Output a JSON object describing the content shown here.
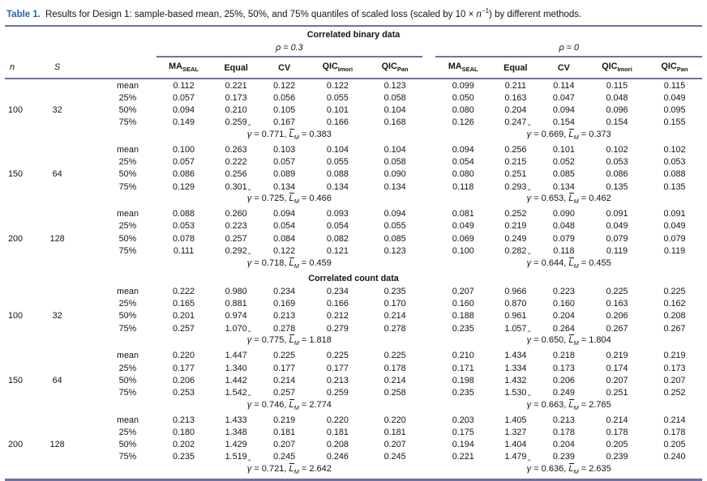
{
  "caption": {
    "label": "Table 1.",
    "text_before_math": "Results for Design 1: sample-based mean, 25%, 50%, and 75% quantiles of scaled loss (scaled by 10 × ",
    "math_var": "n",
    "math_sup": "−1",
    "text_after_math": ") by different methods."
  },
  "table": {
    "columns": {
      "n": "n",
      "S": "S"
    },
    "groups": [
      {
        "label": "ρ = 0.3"
      },
      {
        "label": "ρ = 0"
      }
    ],
    "methods": [
      {
        "name": "MA",
        "sub": "SEAL"
      },
      {
        "name": "Equal",
        "sub": ""
      },
      {
        "name": "CV",
        "sub": ""
      },
      {
        "name": "QIC",
        "sub": "Imori"
      },
      {
        "name": "QIC",
        "sub": "Pan"
      }
    ],
    "stat_format": {
      "gamma": "γ",
      "equals": "=",
      "comma": ",",
      "L": "L",
      "L_sub": "M"
    },
    "sections": [
      {
        "title": "Correlated binary data",
        "blocks": [
          {
            "n": "100",
            "S": "32",
            "rows": [
              {
                "label": "mean",
                "g1": [
                  "0.112",
                  "0.221",
                  "0.122",
                  "0.122",
                  "0.123"
                ],
                "g2": [
                  "0.099",
                  "0.211",
                  "0.114",
                  "0.115",
                  "0.115"
                ]
              },
              {
                "label": "25%",
                "g1": [
                  "0.057",
                  "0.173",
                  "0.056",
                  "0.055",
                  "0.058"
                ],
                "g2": [
                  "0.050",
                  "0.163",
                  "0.047",
                  "0.048",
                  "0.049"
                ]
              },
              {
                "label": "50%",
                "g1": [
                  "0.094",
                  "0.210",
                  "0.105",
                  "0.101",
                  "0.104"
                ],
                "g2": [
                  "0.080",
                  "0.204",
                  "0.094",
                  "0.096",
                  "0.095"
                ]
              },
              {
                "label": "75%",
                "g1": [
                  "0.149",
                  "0.259",
                  "0.167",
                  "0.166",
                  "0.168"
                ],
                "g2": [
                  "0.126",
                  "0.247",
                  "0.154",
                  "0.154",
                  "0.155"
                ]
              }
            ],
            "footers": [
              {
                "gamma": "0.771",
                "lm": "0.383"
              },
              {
                "gamma": "0.669",
                "lm": "0.373"
              }
            ]
          },
          {
            "n": "150",
            "S": "64",
            "rows": [
              {
                "label": "mean",
                "g1": [
                  "0.100",
                  "0.263",
                  "0.103",
                  "0.104",
                  "0.104"
                ],
                "g2": [
                  "0.094",
                  "0.256",
                  "0.101",
                  "0.102",
                  "0.102"
                ]
              },
              {
                "label": "25%",
                "g1": [
                  "0.057",
                  "0.222",
                  "0.057",
                  "0.055",
                  "0.058"
                ],
                "g2": [
                  "0.054",
                  "0.215",
                  "0.052",
                  "0.053",
                  "0.053"
                ]
              },
              {
                "label": "50%",
                "g1": [
                  "0.086",
                  "0.256",
                  "0.089",
                  "0.088",
                  "0.090"
                ],
                "g2": [
                  "0.080",
                  "0.251",
                  "0.085",
                  "0.086",
                  "0.088"
                ]
              },
              {
                "label": "75%",
                "g1": [
                  "0.129",
                  "0.301",
                  "0.134",
                  "0.134",
                  "0.134"
                ],
                "g2": [
                  "0.118",
                  "0.293",
                  "0.134",
                  "0.135",
                  "0.135"
                ]
              }
            ],
            "footers": [
              {
                "gamma": "0.725",
                "lm": "0.466"
              },
              {
                "gamma": "0.653",
                "lm": "0.462"
              }
            ]
          },
          {
            "n": "200",
            "S": "128",
            "rows": [
              {
                "label": "mean",
                "g1": [
                  "0.088",
                  "0.260",
                  "0.094",
                  "0.093",
                  "0.094"
                ],
                "g2": [
                  "0.081",
                  "0.252",
                  "0.090",
                  "0.091",
                  "0.091"
                ]
              },
              {
                "label": "25%",
                "g1": [
                  "0.053",
                  "0.223",
                  "0.054",
                  "0.054",
                  "0.055"
                ],
                "g2": [
                  "0.049",
                  "0.219",
                  "0.048",
                  "0.049",
                  "0.049"
                ]
              },
              {
                "label": "50%",
                "g1": [
                  "0.078",
                  "0.257",
                  "0.084",
                  "0.082",
                  "0.085"
                ],
                "g2": [
                  "0.069",
                  "0.249",
                  "0.079",
                  "0.079",
                  "0.079"
                ]
              },
              {
                "label": "75%",
                "g1": [
                  "0.111",
                  "0.292",
                  "0.122",
                  "0.121",
                  "0.123"
                ],
                "g2": [
                  "0.100",
                  "0.282",
                  "0.118",
                  "0.119",
                  "0.119"
                ]
              }
            ],
            "footers": [
              {
                "gamma": "0.718",
                "lm": "0.459"
              },
              {
                "gamma": "0.644",
                "lm": "0.455"
              }
            ]
          }
        ]
      },
      {
        "title": "Correlated count data",
        "blocks": [
          {
            "n": "100",
            "S": "32",
            "rows": [
              {
                "label": "mean",
                "g1": [
                  "0.222",
                  "0.980",
                  "0.234",
                  "0.234",
                  "0.235"
                ],
                "g2": [
                  "0.207",
                  "0.966",
                  "0.223",
                  "0.225",
                  "0.225"
                ]
              },
              {
                "label": "25%",
                "g1": [
                  "0.165",
                  "0.881",
                  "0.169",
                  "0.166",
                  "0.170"
                ],
                "g2": [
                  "0.160",
                  "0.870",
                  "0.160",
                  "0.163",
                  "0.162"
                ]
              },
              {
                "label": "50%",
                "g1": [
                  "0.201",
                  "0.974",
                  "0.213",
                  "0.212",
                  "0.214"
                ],
                "g2": [
                  "0.188",
                  "0.961",
                  "0.204",
                  "0.206",
                  "0.208"
                ]
              },
              {
                "label": "75%",
                "g1": [
                  "0.257",
                  "1.070",
                  "0.278",
                  "0.279",
                  "0.278"
                ],
                "g2": [
                  "0.235",
                  "1.057",
                  "0.264",
                  "0.267",
                  "0.267"
                ]
              }
            ],
            "footers": [
              {
                "gamma": "0.775",
                "lm": "1.818"
              },
              {
                "gamma": "0.650",
                "lm": "1.804"
              }
            ]
          },
          {
            "n": "150",
            "S": "64",
            "rows": [
              {
                "label": "mean",
                "g1": [
                  "0.220",
                  "1.447",
                  "0.225",
                  "0.225",
                  "0.225"
                ],
                "g2": [
                  "0.210",
                  "1.434",
                  "0.218",
                  "0.219",
                  "0.219"
                ]
              },
              {
                "label": "25%",
                "g1": [
                  "0.177",
                  "1.340",
                  "0.177",
                  "0.177",
                  "0.178"
                ],
                "g2": [
                  "0.171",
                  "1.334",
                  "0.173",
                  "0.174",
                  "0.173"
                ]
              },
              {
                "label": "50%",
                "g1": [
                  "0.206",
                  "1.442",
                  "0.214",
                  "0.213",
                  "0.214"
                ],
                "g2": [
                  "0.198",
                  "1.432",
                  "0.206",
                  "0.207",
                  "0.207"
                ]
              },
              {
                "label": "75%",
                "g1": [
                  "0.253",
                  "1.542",
                  "0.257",
                  "0.259",
                  "0.258"
                ],
                "g2": [
                  "0.235",
                  "1.530",
                  "0.249",
                  "0.251",
                  "0.252"
                ]
              }
            ],
            "footers": [
              {
                "gamma": "0.746",
                "lm": "2.774"
              },
              {
                "gamma": "0.663",
                "lm": "2.765"
              }
            ]
          },
          {
            "n": "200",
            "S": "128",
            "rows": [
              {
                "label": "mean",
                "g1": [
                  "0.213",
                  "1.433",
                  "0.219",
                  "0.220",
                  "0.220"
                ],
                "g2": [
                  "0.203",
                  "1.405",
                  "0.213",
                  "0.214",
                  "0.214"
                ]
              },
              {
                "label": "25%",
                "g1": [
                  "0.180",
                  "1.348",
                  "0.181",
                  "0.181",
                  "0.181"
                ],
                "g2": [
                  "0.175",
                  "1.327",
                  "0.178",
                  "0.178",
                  "0.178"
                ]
              },
              {
                "label": "50%",
                "g1": [
                  "0.202",
                  "1.429",
                  "0.207",
                  "0.208",
                  "0.207"
                ],
                "g2": [
                  "0.194",
                  "1.404",
                  "0.204",
                  "0.205",
                  "0.205"
                ]
              },
              {
                "label": "75%",
                "g1": [
                  "0.235",
                  "1.519",
                  "0.245",
                  "0.246",
                  "0.245"
                ],
                "g2": [
                  "0.221",
                  "1.479",
                  "0.239",
                  "0.239",
                  "0.240"
                ]
              }
            ],
            "footers": [
              {
                "gamma": "0.721",
                "lm": "2.642"
              },
              {
                "gamma": "0.636",
                "lm": "2.635"
              }
            ]
          }
        ]
      }
    ],
    "rule_color": "#6e70a9",
    "caption_label_color": "#2765ab"
  }
}
